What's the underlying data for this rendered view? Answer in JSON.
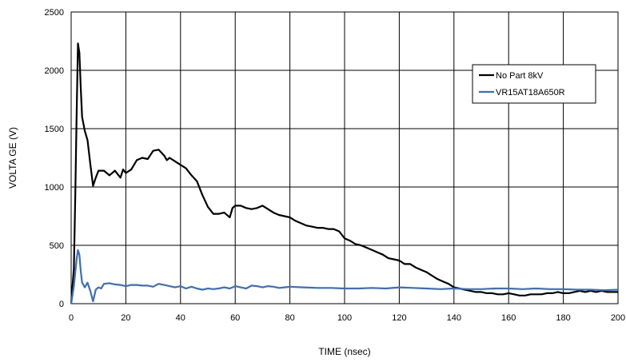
{
  "chart_data": {
    "type": "line",
    "title": "",
    "xlabel": "TIME (nsec)",
    "ylabel": "VOLTA GE (V)",
    "xlim": [
      0,
      200
    ],
    "ylim": [
      0,
      2500
    ],
    "x_ticks": [
      0,
      20,
      40,
      60,
      80,
      100,
      120,
      140,
      160,
      180,
      200
    ],
    "y_ticks": [
      0,
      500,
      1000,
      1500,
      2000,
      2500
    ],
    "grid": true,
    "legend_position": "top-right",
    "series": [
      {
        "name": "No Part 8kV",
        "color": "#000000",
        "x": [
          0,
          1,
          1.5,
          2,
          2.5,
          3,
          3.5,
          4,
          5,
          6,
          7,
          8,
          9,
          10,
          12,
          14,
          16,
          18,
          19,
          20,
          22,
          24,
          26,
          28,
          30,
          32,
          34,
          35,
          36,
          38,
          40,
          42,
          44,
          46,
          48,
          50,
          52,
          54,
          56,
          58,
          59,
          60,
          62,
          64,
          66,
          68,
          70,
          72,
          74,
          76,
          78,
          80,
          82,
          84,
          86,
          88,
          90,
          92,
          94,
          96,
          98,
          100,
          102,
          104,
          106,
          108,
          110,
          112,
          114,
          116,
          118,
          120,
          122,
          124,
          126,
          128,
          130,
          132,
          134,
          136,
          138,
          140,
          142,
          144,
          146,
          148,
          150,
          152,
          154,
          156,
          158,
          160,
          162,
          164,
          166,
          168,
          170,
          172,
          174,
          176,
          178,
          180,
          182,
          184,
          186,
          188,
          190,
          192,
          194,
          196,
          198,
          200
        ],
        "values": [
          0,
          300,
          900,
          1600,
          2230,
          2150,
          1850,
          1600,
          1480,
          1400,
          1200,
          1010,
          1080,
          1140,
          1140,
          1100,
          1140,
          1080,
          1150,
          1120,
          1150,
          1230,
          1250,
          1240,
          1310,
          1320,
          1270,
          1230,
          1250,
          1220,
          1190,
          1160,
          1100,
          1050,
          930,
          830,
          770,
          770,
          780,
          740,
          820,
          840,
          840,
          820,
          810,
          820,
          840,
          810,
          780,
          760,
          750,
          740,
          710,
          690,
          670,
          660,
          650,
          650,
          640,
          640,
          620,
          560,
          540,
          510,
          500,
          480,
          460,
          440,
          420,
          390,
          380,
          370,
          340,
          340,
          310,
          290,
          270,
          240,
          210,
          190,
          170,
          140,
          130,
          120,
          110,
          100,
          100,
          90,
          90,
          80,
          80,
          90,
          80,
          70,
          70,
          80,
          80,
          80,
          90,
          90,
          100,
          90,
          90,
          100,
          110,
          100,
          110,
          100,
          110,
          100,
          100,
          100
        ]
      },
      {
        "name": "VR15AT18A650R",
        "color": "#3a6fba",
        "x": [
          0,
          1,
          2,
          2.5,
          3,
          3.5,
          4,
          5,
          6,
          7,
          8,
          9,
          10,
          11,
          12,
          14,
          16,
          18,
          20,
          22,
          24,
          26,
          28,
          30,
          32,
          34,
          36,
          38,
          40,
          42,
          44,
          46,
          48,
          50,
          52,
          54,
          56,
          58,
          60,
          62,
          64,
          66,
          68,
          70,
          72,
          74,
          76,
          78,
          80,
          85,
          90,
          95,
          100,
          105,
          110,
          115,
          120,
          125,
          130,
          135,
          140,
          145,
          150,
          155,
          160,
          165,
          170,
          175,
          180,
          185,
          190,
          195,
          200
        ],
        "values": [
          0,
          150,
          380,
          460,
          420,
          280,
          180,
          140,
          180,
          110,
          20,
          120,
          140,
          130,
          170,
          175,
          165,
          160,
          150,
          160,
          160,
          155,
          155,
          145,
          170,
          160,
          150,
          140,
          150,
          130,
          145,
          130,
          120,
          130,
          125,
          130,
          140,
          130,
          150,
          140,
          130,
          155,
          150,
          140,
          150,
          145,
          135,
          140,
          145,
          140,
          135,
          135,
          130,
          130,
          135,
          130,
          140,
          135,
          130,
          125,
          130,
          125,
          125,
          130,
          130,
          125,
          130,
          125,
          125,
          120,
          120,
          115,
          120
        ]
      }
    ]
  }
}
